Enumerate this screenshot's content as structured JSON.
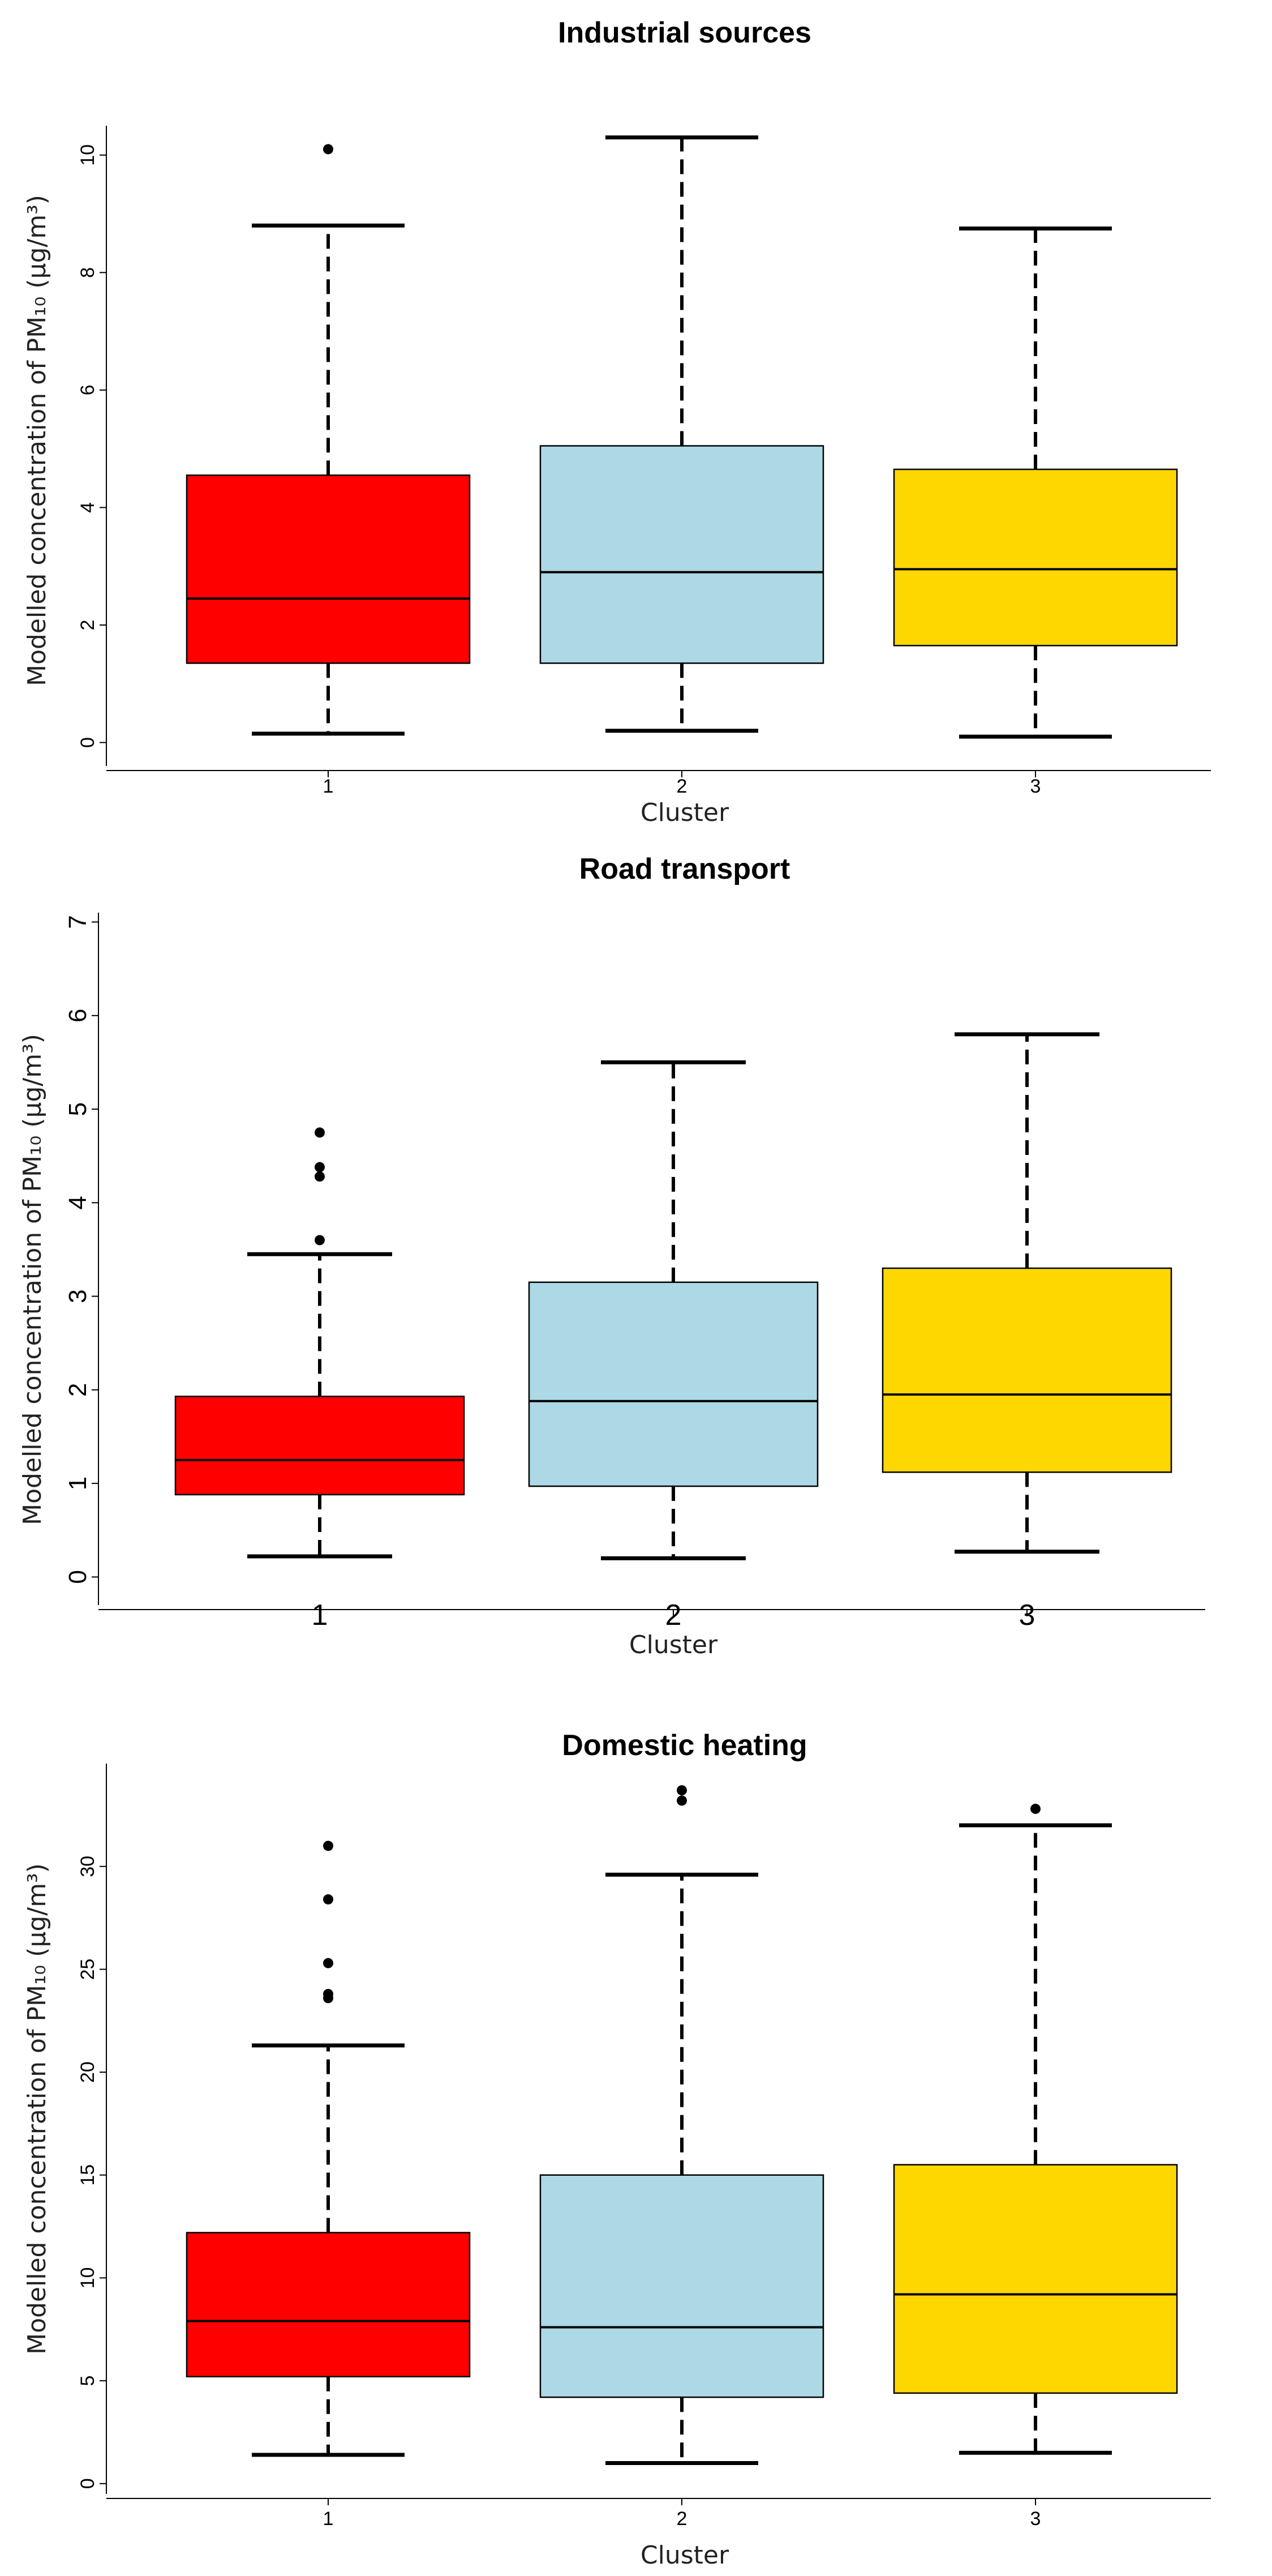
{
  "colors": {
    "cluster_1": "#FF0000",
    "cluster_2": "#ADD8E6",
    "cluster_3": "#FFD700"
  },
  "chart_data": [
    {
      "type": "boxplot",
      "title": "Industrial sources",
      "xlabel": "Cluster",
      "ylabel": "Modelled concentration of PM₁₀ (µg/m³)",
      "ylim": [
        -0.4,
        10.5
      ],
      "yticks": [
        0,
        2,
        4,
        6,
        8,
        10
      ],
      "categories": [
        "1",
        "2",
        "3"
      ],
      "boxes": [
        {
          "name": "1",
          "whisker_low": 0.15,
          "q1": 1.35,
          "median": 2.45,
          "q3": 4.55,
          "whisker_high": 8.8,
          "outliers": [
            10.1
          ]
        },
        {
          "name": "2",
          "whisker_low": 0.2,
          "q1": 1.35,
          "median": 2.9,
          "q3": 5.05,
          "whisker_high": 10.3,
          "outliers": []
        },
        {
          "name": "3",
          "whisker_low": 0.1,
          "q1": 1.65,
          "median": 2.95,
          "q3": 4.65,
          "whisker_high": 8.75,
          "outliers": []
        }
      ]
    },
    {
      "type": "boxplot",
      "title": "Road transport",
      "xlabel": "Cluster",
      "ylabel": "Modelled concentration of PM₁₀ (µg/m³)",
      "ylim": [
        -0.3,
        7.1
      ],
      "yticks": [
        0,
        1,
        2,
        3,
        4,
        5,
        6,
        7
      ],
      "categories": [
        "1",
        "2",
        "3"
      ],
      "boxes": [
        {
          "name": "1",
          "whisker_low": 0.22,
          "q1": 0.88,
          "median": 1.25,
          "q3": 1.93,
          "whisker_high": 3.45,
          "outliers": [
            3.6,
            4.28,
            4.38,
            4.75
          ]
        },
        {
          "name": "2",
          "whisker_low": 0.2,
          "q1": 0.97,
          "median": 1.88,
          "q3": 3.15,
          "whisker_high": 5.5,
          "outliers": []
        },
        {
          "name": "3",
          "whisker_low": 0.27,
          "q1": 1.12,
          "median": 1.95,
          "q3": 3.3,
          "whisker_high": 5.8,
          "outliers": []
        }
      ]
    },
    {
      "type": "boxplot",
      "title": "Domestic heating",
      "xlabel": "Cluster",
      "ylabel": "Modelled concentration of PM₁₀ (µg/m³)",
      "ylim": [
        -0.5,
        35
      ],
      "yticks": [
        0,
        5,
        10,
        15,
        20,
        25,
        30
      ],
      "categories": [
        "1",
        "2",
        "3"
      ],
      "boxes": [
        {
          "name": "1",
          "whisker_low": 1.4,
          "q1": 5.2,
          "median": 7.9,
          "q3": 12.2,
          "whisker_high": 21.3,
          "outliers": [
            23.6,
            23.8,
            25.3,
            28.4,
            31
          ]
        },
        {
          "name": "2",
          "whisker_low": 1.0,
          "q1": 4.2,
          "median": 7.6,
          "q3": 15.0,
          "whisker_high": 29.6,
          "outliers": [
            33.2,
            33.7
          ]
        },
        {
          "name": "3",
          "whisker_low": 1.5,
          "q1": 4.4,
          "median": 9.2,
          "q3": 15.5,
          "whisker_high": 32.0,
          "outliers": [
            32.8
          ]
        }
      ]
    }
  ]
}
